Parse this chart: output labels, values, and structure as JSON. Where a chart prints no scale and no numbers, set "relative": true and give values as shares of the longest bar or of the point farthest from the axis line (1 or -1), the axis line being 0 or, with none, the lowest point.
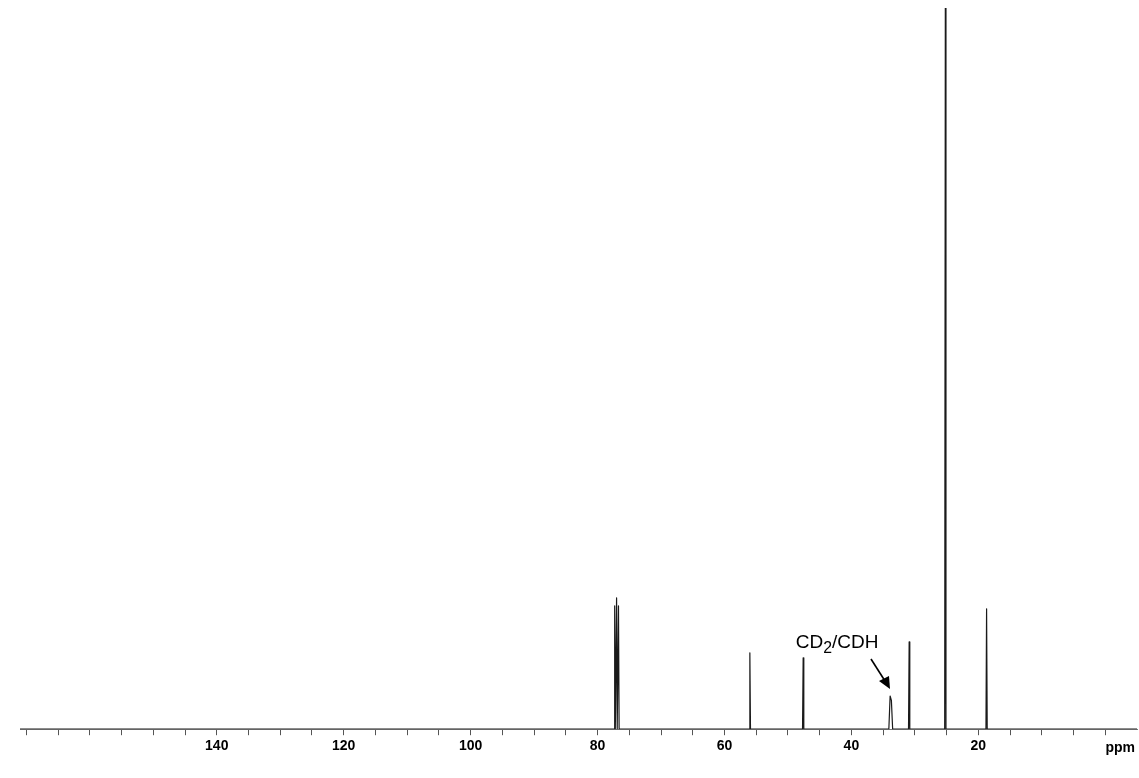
{
  "chart_data": {
    "type": "line",
    "relative": true,
    "xlabel": "ppm",
    "color": "#1a1a1a",
    "x": [
      171,
      77.4,
      77.3,
      77.2,
      77.1,
      77.0,
      76.9,
      76.8,
      76.7,
      76.6,
      56.1,
      56.0,
      55.9,
      47.7,
      47.6,
      47.5,
      34.1,
      33.9,
      33.7,
      33.5,
      31.0,
      30.9,
      30.8,
      25.3,
      25.2,
      25.1,
      18.8,
      18.7,
      18.6,
      -5
    ],
    "values": [
      0,
      0,
      0.171,
      0,
      0,
      0.182,
      0,
      0,
      0.171,
      0,
      0,
      0.106,
      0,
      0,
      0.099,
      0,
      0,
      0.046,
      0.04,
      0,
      0,
      0.121,
      0,
      0,
      1,
      0,
      0,
      0.167,
      0,
      0
    ],
    "xlim": [
      171,
      -5
    ],
    "xticks": [
      {
        "value": 170,
        "label": null
      },
      {
        "value": 165,
        "label": null
      },
      {
        "value": 160,
        "label": null
      },
      {
        "value": 155,
        "label": null
      },
      {
        "value": 150,
        "label": null
      },
      {
        "value": 145,
        "label": null
      },
      140,
      {
        "value": 135,
        "label": null
      },
      {
        "value": 130,
        "label": null
      },
      {
        "value": 125,
        "label": null
      },
      120,
      {
        "value": 115,
        "label": null
      },
      {
        "value": 110,
        "label": null
      },
      {
        "value": 105,
        "label": null
      },
      100,
      {
        "value": 95,
        "label": null
      },
      {
        "value": 90,
        "label": null
      },
      {
        "value": 85,
        "label": null
      },
      80,
      {
        "value": 75,
        "label": null
      },
      {
        "value": 70,
        "label": null
      },
      {
        "value": 65,
        "label": null
      },
      60,
      {
        "value": 55,
        "label": null
      },
      {
        "value": 50,
        "label": null
      },
      {
        "value": 45,
        "label": null
      },
      40,
      {
        "value": 35,
        "label": null
      },
      {
        "value": 30,
        "label": null
      },
      {
        "value": 25,
        "label": null
      },
      20,
      {
        "value": 15,
        "label": null
      },
      {
        "value": 10,
        "label": null
      },
      {
        "value": 5,
        "label": null
      },
      {
        "value": 0,
        "label": null
      }
    ],
    "grid": false,
    "marker": "none",
    "line_style": "solid",
    "annotations": [
      {
        "text": "CD$_{2}$/CDH",
        "x": 33.8,
        "y": 0.05
      }
    ]
  }
}
